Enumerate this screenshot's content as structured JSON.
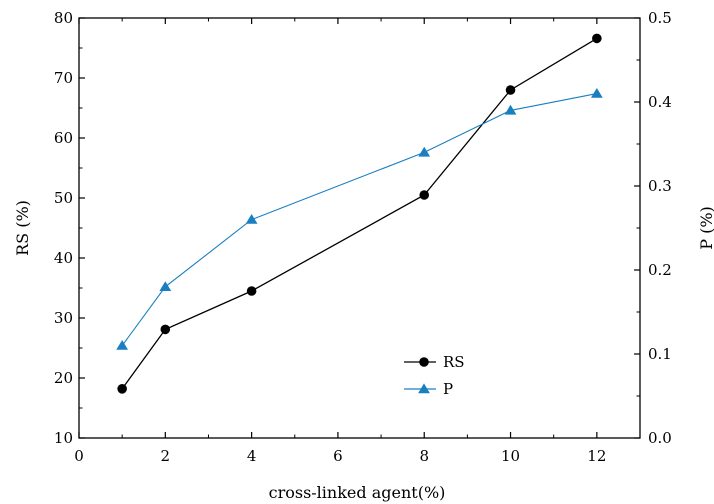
{
  "chart_data": {
    "type": "line",
    "title": "",
    "xlabel": "cross-linked agent(%)",
    "ylabel": "RS (%)",
    "y2label": "P (%)",
    "xlim": [
      0,
      13
    ],
    "ylim": [
      10,
      80
    ],
    "y2lim": [
      0.0,
      0.5
    ],
    "x_ticks": [
      0,
      2,
      4,
      6,
      8,
      10,
      12
    ],
    "x_tick_labels": [
      "0",
      "2",
      "4",
      "6",
      "8",
      "10",
      "12"
    ],
    "y_ticks": [
      10,
      20,
      30,
      40,
      50,
      60,
      70,
      80
    ],
    "y_tick_labels": [
      "10",
      "20",
      "30",
      "40",
      "50",
      "60",
      "70",
      "80"
    ],
    "y2_ticks": [
      0.0,
      0.1,
      0.2,
      0.3,
      0.4,
      0.5
    ],
    "y2_tick_labels": [
      "0.0",
      "0.1",
      "0.2",
      "0.3",
      "0.4",
      "0.5"
    ],
    "grid": false,
    "legend_position": "bottom-center",
    "series": [
      {
        "name": "RS",
        "axis": "left",
        "color": "#000000",
        "marker": "circle",
        "x": [
          1,
          2,
          4,
          8,
          10,
          12
        ],
        "y": [
          18.2,
          28.1,
          34.5,
          50.5,
          68.0,
          76.6
        ]
      },
      {
        "name": "P",
        "axis": "right",
        "color": "#1a7fc1",
        "marker": "triangle",
        "x": [
          1,
          2,
          4,
          8,
          10,
          12
        ],
        "y": [
          0.11,
          0.18,
          0.26,
          0.34,
          0.39,
          0.41
        ]
      }
    ]
  }
}
